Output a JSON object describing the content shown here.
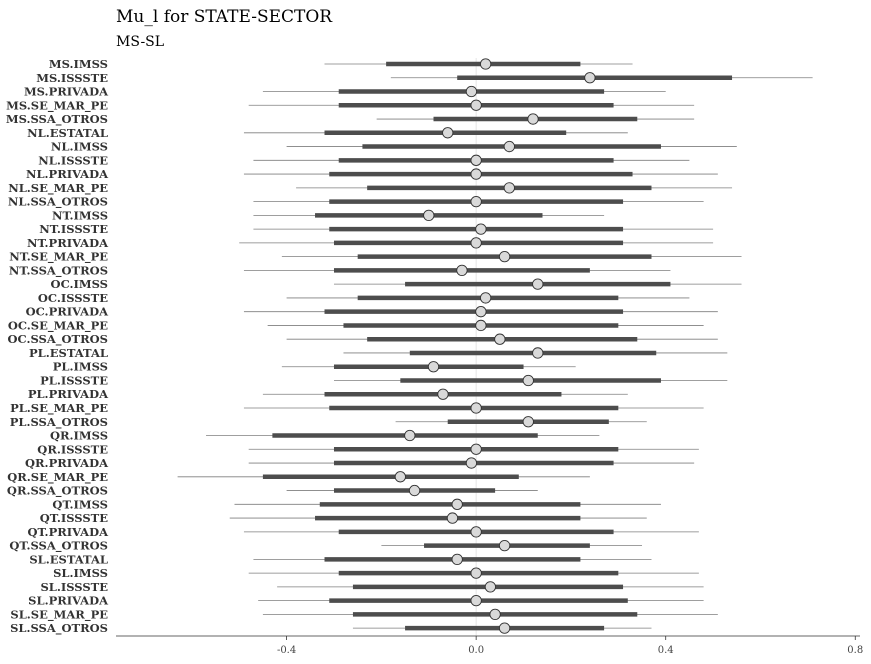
{
  "chart_data": {
    "type": "forest",
    "title": "Mu_l for STATE-SECTOR",
    "subtitle": "MS-SL",
    "xlabel": "",
    "ylabel": "",
    "xlim": [
      -0.76,
      0.81
    ],
    "xticks": [
      -0.4,
      0.0,
      0.4,
      0.8
    ],
    "xtick_labels": [
      "-0.4",
      "0.0",
      "0.4",
      "0.8"
    ],
    "reference_line": 0.0,
    "colors": {
      "thick": "#4d4d4d",
      "thin": "#7f7f7f",
      "point_fill": "#d9d9d9",
      "point_stroke": "#333333",
      "ref": "#e6e6e6"
    },
    "rows": [
      {
        "label": "MS.IMSS",
        "lo": -0.32,
        "lo50": -0.19,
        "mid": 0.02,
        "hi50": 0.22,
        "hi": 0.33
      },
      {
        "label": "MS.ISSSTE",
        "lo": -0.18,
        "lo50": -0.04,
        "mid": 0.24,
        "hi50": 0.54,
        "hi": 0.71
      },
      {
        "label": "MS.PRIVADA",
        "lo": -0.45,
        "lo50": -0.29,
        "mid": -0.01,
        "hi50": 0.27,
        "hi": 0.4
      },
      {
        "label": "MS.SE_MAR_PE",
        "lo": -0.48,
        "lo50": -0.29,
        "mid": 0.0,
        "hi50": 0.29,
        "hi": 0.46
      },
      {
        "label": "MS.SSA_OTROS",
        "lo": -0.21,
        "lo50": -0.09,
        "mid": 0.12,
        "hi50": 0.34,
        "hi": 0.46
      },
      {
        "label": "NL.ESTATAL",
        "lo": -0.49,
        "lo50": -0.32,
        "mid": -0.06,
        "hi50": 0.19,
        "hi": 0.32
      },
      {
        "label": "NL.IMSS",
        "lo": -0.4,
        "lo50": -0.24,
        "mid": 0.07,
        "hi50": 0.39,
        "hi": 0.55
      },
      {
        "label": "NL.ISSSTE",
        "lo": -0.47,
        "lo50": -0.29,
        "mid": 0.0,
        "hi50": 0.29,
        "hi": 0.45
      },
      {
        "label": "NL.PRIVADA",
        "lo": -0.49,
        "lo50": -0.31,
        "mid": 0.0,
        "hi50": 0.33,
        "hi": 0.51
      },
      {
        "label": "NL.SE_MAR_PE",
        "lo": -0.38,
        "lo50": -0.23,
        "mid": 0.07,
        "hi50": 0.37,
        "hi": 0.54
      },
      {
        "label": "NL.SSA_OTROS",
        "lo": -0.47,
        "lo50": -0.31,
        "mid": 0.0,
        "hi50": 0.31,
        "hi": 0.48
      },
      {
        "label": "NT.IMSS",
        "lo": -0.47,
        "lo50": -0.34,
        "mid": -0.1,
        "hi50": 0.14,
        "hi": 0.27
      },
      {
        "label": "NT.ISSSTE",
        "lo": -0.47,
        "lo50": -0.31,
        "mid": 0.01,
        "hi50": 0.31,
        "hi": 0.5
      },
      {
        "label": "NT.PRIVADA",
        "lo": -0.5,
        "lo50": -0.3,
        "mid": 0.0,
        "hi50": 0.31,
        "hi": 0.5
      },
      {
        "label": "NT.SE_MAR_PE",
        "lo": -0.41,
        "lo50": -0.25,
        "mid": 0.06,
        "hi50": 0.37,
        "hi": 0.56
      },
      {
        "label": "NT.SSA_OTROS",
        "lo": -0.49,
        "lo50": -0.3,
        "mid": -0.03,
        "hi50": 0.24,
        "hi": 0.41
      },
      {
        "label": "OC.IMSS",
        "lo": -0.3,
        "lo50": -0.15,
        "mid": 0.13,
        "hi50": 0.41,
        "hi": 0.56
      },
      {
        "label": "OC.ISSSTE",
        "lo": -0.4,
        "lo50": -0.25,
        "mid": 0.02,
        "hi50": 0.3,
        "hi": 0.45
      },
      {
        "label": "OC.PRIVADA",
        "lo": -0.49,
        "lo50": -0.32,
        "mid": 0.01,
        "hi50": 0.31,
        "hi": 0.51
      },
      {
        "label": "OC.SE_MAR_PE",
        "lo": -0.44,
        "lo50": -0.28,
        "mid": 0.01,
        "hi50": 0.3,
        "hi": 0.48
      },
      {
        "label": "OC.SSA_OTROS",
        "lo": -0.4,
        "lo50": -0.23,
        "mid": 0.05,
        "hi50": 0.34,
        "hi": 0.51
      },
      {
        "label": "PL.ESTATAL",
        "lo": -0.28,
        "lo50": -0.14,
        "mid": 0.13,
        "hi50": 0.38,
        "hi": 0.53
      },
      {
        "label": "PL.IMSS",
        "lo": -0.41,
        "lo50": -0.3,
        "mid": -0.09,
        "hi50": 0.1,
        "hi": 0.21
      },
      {
        "label": "PL.ISSSTE",
        "lo": -0.3,
        "lo50": -0.16,
        "mid": 0.11,
        "hi50": 0.39,
        "hi": 0.53
      },
      {
        "label": "PL.PRIVADA",
        "lo": -0.45,
        "lo50": -0.32,
        "mid": -0.07,
        "hi50": 0.18,
        "hi": 0.32
      },
      {
        "label": "PL.SE_MAR_PE",
        "lo": -0.49,
        "lo50": -0.31,
        "mid": 0.0,
        "hi50": 0.3,
        "hi": 0.48
      },
      {
        "label": "PL.SSA_OTROS",
        "lo": -0.17,
        "lo50": -0.06,
        "mid": 0.11,
        "hi50": 0.28,
        "hi": 0.36
      },
      {
        "label": "QR.IMSS",
        "lo": -0.57,
        "lo50": -0.43,
        "mid": -0.14,
        "hi50": 0.13,
        "hi": 0.26
      },
      {
        "label": "QR.ISSSTE",
        "lo": -0.48,
        "lo50": -0.3,
        "mid": 0.0,
        "hi50": 0.3,
        "hi": 0.47
      },
      {
        "label": "QR.PRIVADA",
        "lo": -0.48,
        "lo50": -0.3,
        "mid": -0.01,
        "hi50": 0.29,
        "hi": 0.46
      },
      {
        "label": "QR.SE_MAR_PE",
        "lo": -0.63,
        "lo50": -0.45,
        "mid": -0.16,
        "hi50": 0.09,
        "hi": 0.24
      },
      {
        "label": "QR.SSA_OTROS",
        "lo": -0.4,
        "lo50": -0.3,
        "mid": -0.13,
        "hi50": 0.04,
        "hi": 0.13
      },
      {
        "label": "QT.IMSS",
        "lo": -0.51,
        "lo50": -0.33,
        "mid": -0.04,
        "hi50": 0.22,
        "hi": 0.39
      },
      {
        "label": "QT.ISSSTE",
        "lo": -0.52,
        "lo50": -0.34,
        "mid": -0.05,
        "hi50": 0.22,
        "hi": 0.36
      },
      {
        "label": "QT.PRIVADA",
        "lo": -0.49,
        "lo50": -0.29,
        "mid": 0.0,
        "hi50": 0.29,
        "hi": 0.47
      },
      {
        "label": "QT.SSA_OTROS",
        "lo": -0.2,
        "lo50": -0.11,
        "mid": 0.06,
        "hi50": 0.24,
        "hi": 0.35
      },
      {
        "label": "SL.ESTATAL",
        "lo": -0.47,
        "lo50": -0.32,
        "mid": -0.04,
        "hi50": 0.22,
        "hi": 0.37
      },
      {
        "label": "SL.IMSS",
        "lo": -0.48,
        "lo50": -0.29,
        "mid": 0.0,
        "hi50": 0.3,
        "hi": 0.47
      },
      {
        "label": "SL.ISSSTE",
        "lo": -0.42,
        "lo50": -0.26,
        "mid": 0.03,
        "hi50": 0.31,
        "hi": 0.48
      },
      {
        "label": "SL.PRIVADA",
        "lo": -0.46,
        "lo50": -0.31,
        "mid": 0.0,
        "hi50": 0.32,
        "hi": 0.48
      },
      {
        "label": "SL.SE_MAR_PE",
        "lo": -0.45,
        "lo50": -0.26,
        "mid": 0.04,
        "hi50": 0.34,
        "hi": 0.51
      },
      {
        "label": "SL.SSA_OTROS",
        "lo": -0.26,
        "lo50": -0.15,
        "mid": 0.06,
        "hi50": 0.27,
        "hi": 0.37
      }
    ]
  }
}
